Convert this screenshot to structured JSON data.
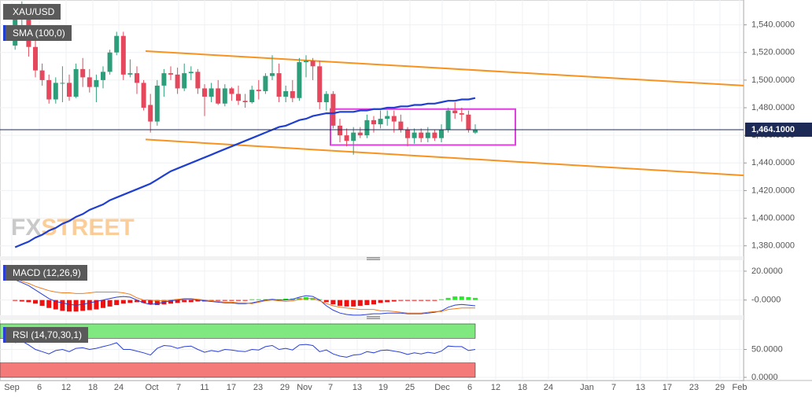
{
  "chart_data": [
    {
      "type": "candlestick",
      "title": "XAU/USD",
      "up_color": "#2e9e7a",
      "down_color": "#e5475c",
      "candles": [
        [
          1525,
          1546,
          1522,
          1545
        ],
        [
          1545,
          1557,
          1536,
          1549
        ],
        [
          1549,
          1553,
          1517,
          1524
        ],
        [
          1524,
          1530,
          1502,
          1507
        ],
        [
          1507,
          1512,
          1496,
          1500
        ],
        [
          1500,
          1504,
          1483,
          1486
        ],
        [
          1486,
          1502,
          1483,
          1498
        ],
        [
          1498,
          1510,
          1484,
          1498
        ],
        [
          1498,
          1504,
          1485,
          1488
        ],
        [
          1488,
          1512,
          1487,
          1508
        ],
        [
          1508,
          1516,
          1495,
          1502
        ],
        [
          1502,
          1508,
          1491,
          1495
        ],
        [
          1495,
          1504,
          1484,
          1500
        ],
        [
          1500,
          1510,
          1494,
          1506
        ],
        [
          1506,
          1522,
          1504,
          1520
        ],
        [
          1520,
          1535,
          1518,
          1532
        ],
        [
          1532,
          1535,
          1500,
          1504
        ],
        [
          1504,
          1515,
          1502,
          1505
        ],
        [
          1505,
          1510,
          1490,
          1498
        ],
        [
          1498,
          1500,
          1478,
          1480
        ],
        [
          1482,
          1490,
          1462,
          1470
        ],
        [
          1470,
          1500,
          1467,
          1496
        ],
        [
          1496,
          1508,
          1488,
          1505
        ],
        [
          1505,
          1510,
          1500,
          1504
        ],
        [
          1504,
          1509,
          1490,
          1494
        ],
        [
          1494,
          1512,
          1492,
          1505
        ],
        [
          1505,
          1510,
          1500,
          1506
        ],
        [
          1506,
          1508,
          1490,
          1494
        ],
        [
          1494,
          1497,
          1474,
          1488
        ],
        [
          1488,
          1498,
          1484,
          1494
        ],
        [
          1494,
          1500,
          1482,
          1483
        ],
        [
          1483,
          1497,
          1481,
          1494
        ],
        [
          1494,
          1495,
          1485,
          1490
        ],
        [
          1490,
          1496,
          1482,
          1485
        ],
        [
          1485,
          1490,
          1480,
          1484
        ],
        [
          1484,
          1496,
          1483,
          1493
        ],
        [
          1493,
          1500,
          1486,
          1492
        ],
        [
          1492,
          1505,
          1490,
          1503
        ],
        [
          1503,
          1518,
          1500,
          1505
        ],
        [
          1505,
          1512,
          1484,
          1488
        ],
        [
          1488,
          1496,
          1484,
          1492
        ],
        [
          1492,
          1500,
          1484,
          1487
        ],
        [
          1487,
          1516,
          1485,
          1513
        ],
        [
          1513,
          1518,
          1502,
          1514
        ],
        [
          1514,
          1516,
          1500,
          1510
        ],
        [
          1510,
          1514,
          1479,
          1484
        ],
        [
          1484,
          1492,
          1478,
          1490
        ],
        [
          1490,
          1492,
          1465,
          1467
        ],
        [
          1467,
          1472,
          1455,
          1460
        ],
        [
          1460,
          1465,
          1452,
          1456
        ],
        [
          1456,
          1466,
          1446,
          1462
        ],
        [
          1462,
          1466,
          1458,
          1460
        ],
        [
          1460,
          1475,
          1458,
          1471
        ],
        [
          1471,
          1474,
          1462,
          1468
        ],
        [
          1468,
          1478,
          1465,
          1472
        ],
        [
          1472,
          1478,
          1467,
          1474
        ],
        [
          1474,
          1478,
          1462,
          1470
        ],
        [
          1470,
          1475,
          1462,
          1464
        ],
        [
          1464,
          1466,
          1452,
          1458
        ],
        [
          1458,
          1465,
          1454,
          1462
        ],
        [
          1462,
          1465,
          1455,
          1458
        ],
        [
          1458,
          1466,
          1455,
          1462
        ],
        [
          1462,
          1464,
          1456,
          1458
        ],
        [
          1458,
          1468,
          1455,
          1464
        ],
        [
          1464,
          1480,
          1462,
          1478
        ],
        [
          1478,
          1484,
          1472,
          1476
        ],
        [
          1476,
          1480,
          1470,
          1475
        ],
        [
          1475,
          1478,
          1462,
          1464
        ],
        [
          1462,
          1468,
          1461,
          1464.1
        ]
      ],
      "sma": {
        "name": "SMA (100,0)",
        "color": "#1f3fcf",
        "values": [
          1379,
          1381,
          1383,
          1386,
          1388,
          1391,
          1393,
          1396,
          1398,
          1401,
          1403,
          1406,
          1408,
          1410,
          1413,
          1415,
          1417,
          1419,
          1421,
          1423,
          1425,
          1428,
          1431,
          1434,
          1436,
          1438,
          1440,
          1442,
          1444,
          1446,
          1448,
          1450,
          1452,
          1454,
          1456,
          1458,
          1460,
          1462,
          1464,
          1466,
          1467,
          1469,
          1471,
          1472,
          1474,
          1475,
          1476,
          1476,
          1477,
          1477,
          1477,
          1478,
          1478,
          1479,
          1479,
          1480,
          1480,
          1481,
          1481,
          1482,
          1482,
          1483,
          1483,
          1484,
          1485,
          1485,
          1486,
          1486,
          1487
        ]
      },
      "trendlines": [
        {
          "color": "#f7931e",
          "values": [
            1521,
            1496
          ]
        },
        {
          "color": "#f7931e",
          "values": [
            1457,
            1431
          ]
        }
      ],
      "highlight_box": {
        "color": "#e040e0",
        "ylim": [
          1453,
          1479
        ]
      },
      "last_price": {
        "value": 1464.1,
        "label": "1,464.1000",
        "color": "#1c2a55"
      },
      "watermark": {
        "prefix": "FX",
        "suffix": "STREET"
      },
      "ylim": [
        1373,
        1558
      ],
      "yticks": [
        {
          "value": 1380,
          "label": "1,380.0000"
        },
        {
          "value": 1400,
          "label": "1,400.0000"
        },
        {
          "value": 1420,
          "label": "1,420.0000"
        },
        {
          "value": 1440,
          "label": "1,440.0000"
        },
        {
          "value": 1460,
          "label": "1,460.0000"
        },
        {
          "value": 1480,
          "label": "1,480.0000"
        },
        {
          "value": 1500,
          "label": "1,500.0000"
        },
        {
          "value": 1520,
          "label": "1,520.0000"
        },
        {
          "value": 1540,
          "label": "1,540.0000"
        }
      ],
      "x_labels": [
        "Sep",
        "6",
        "12",
        "18",
        "24",
        "Oct",
        "7",
        "11",
        "17",
        "23",
        "29",
        "Nov",
        "7",
        "13",
        "19",
        "25",
        "Dec",
        "6",
        "12",
        "18",
        "24",
        "Jan",
        "7",
        "13",
        "17",
        "23",
        "29",
        "Feb"
      ],
      "grid": true
    },
    {
      "type": "macd",
      "title": "MACD (12,26,9)",
      "histogram": {
        "up_color": "#2ee62e",
        "down_color": "#ee1111",
        "values": [
          -0.5,
          -1,
          -1.5,
          -2.5,
          -4,
          -5.5,
          -6.5,
          -7.5,
          -8,
          -8,
          -7.5,
          -7,
          -6.5,
          -5.5,
          -4.5,
          -3.5,
          -2.5,
          -2,
          -1.5,
          -2,
          -3,
          -3.5,
          -3,
          -2.5,
          -2,
          -1.5,
          -1.5,
          -1,
          -1,
          -0.5,
          -0.5,
          -0.5,
          -0.5,
          -0.5,
          -0.5,
          0.5,
          0.5,
          0.5,
          0.5,
          0.5,
          1,
          1,
          1.5,
          2,
          1.5,
          0.5,
          -1.5,
          -3,
          -4,
          -4.5,
          -4.5,
          -4,
          -3.5,
          -3,
          -2,
          -1.5,
          -1,
          -0.5,
          -0.5,
          -0.5,
          -0.5,
          -0.5,
          -0.5,
          0.5,
          1.5,
          2.5,
          2.5,
          2,
          1.5
        ]
      },
      "series": [
        {
          "color": "#2a3fd6",
          "values": [
            14,
            12,
            10,
            7,
            4,
            1,
            -1,
            -2,
            -3,
            -3.5,
            -3,
            -2,
            -1,
            0,
            1,
            2,
            2.5,
            2,
            0,
            -2,
            -3,
            -2.5,
            -1.5,
            -0.5,
            0,
            0.5,
            0.5,
            0,
            -0.5,
            -1,
            -1.5,
            -2,
            -2,
            -2.5,
            -2.5,
            -2,
            -1,
            0,
            0.5,
            0,
            0,
            0.5,
            2,
            3,
            2.5,
            0,
            -4,
            -7,
            -9,
            -10,
            -10.5,
            -10.5,
            -10,
            -9.5,
            -9.5,
            -9,
            -9,
            -9,
            -9.5,
            -9.5,
            -9.5,
            -9,
            -8.5,
            -7.5,
            -5,
            -3.5,
            -3,
            -3.5,
            -4
          ]
        },
        {
          "color": "#f07b1e",
          "values": [
            15,
            13,
            11.5,
            9.5,
            8,
            6.5,
            5.5,
            5,
            5,
            4.5,
            4.5,
            5,
            5.5,
            5.5,
            5.5,
            5.5,
            5,
            4,
            1.5,
            0,
            0,
            -0.5,
            -0.5,
            0,
            0.5,
            1,
            1,
            0.5,
            0,
            -0.5,
            -1,
            -1.5,
            -1.5,
            -2,
            -2,
            -2.5,
            -1.5,
            -0.5,
            0,
            -0.5,
            -1,
            -0.5,
            0.5,
            1,
            1,
            -0.5,
            -2.5,
            -4,
            -5,
            -5.5,
            -6,
            -6.5,
            -6.5,
            -6.5,
            -7.5,
            -7.5,
            -8,
            -8.5,
            -9,
            -9,
            -9,
            -8.5,
            -8,
            -8,
            -6.5,
            -6,
            -5.5,
            -5.5,
            -5.5
          ]
        }
      ],
      "ylim": [
        -10,
        26.5
      ],
      "yticks": [
        {
          "value": 0,
          "label": "-0.0000"
        },
        {
          "value": 20,
          "label": "20.0000"
        }
      ]
    },
    {
      "type": "line",
      "title": "RSI (14,70,30,1)",
      "zones": [
        {
          "range": [
            70,
            100
          ],
          "color": "#7fe87f"
        },
        {
          "range": [
            0,
            30
          ],
          "color": "#f47a7a"
        }
      ],
      "series": [
        {
          "color": "#2a3fd6",
          "values": [
            62,
            65,
            58,
            50,
            46,
            42,
            48,
            50,
            46,
            52,
            53,
            50,
            52,
            55,
            58,
            62,
            50,
            50,
            47,
            44,
            40,
            52,
            57,
            56,
            52,
            55,
            56,
            50,
            45,
            48,
            46,
            50,
            49,
            47,
            46,
            50,
            49,
            55,
            57,
            50,
            52,
            49,
            58,
            59,
            57,
            46,
            49,
            42,
            38,
            36,
            40,
            41,
            46,
            44,
            48,
            49,
            47,
            45,
            41,
            44,
            42,
            45,
            43,
            47,
            56,
            55,
            55,
            48,
            50
          ]
        }
      ],
      "ylim": [
        0,
        100
      ],
      "yticks": [
        {
          "value": 0,
          "label": "0.0000"
        },
        {
          "value": 50,
          "label": "50.0000"
        }
      ]
    }
  ]
}
